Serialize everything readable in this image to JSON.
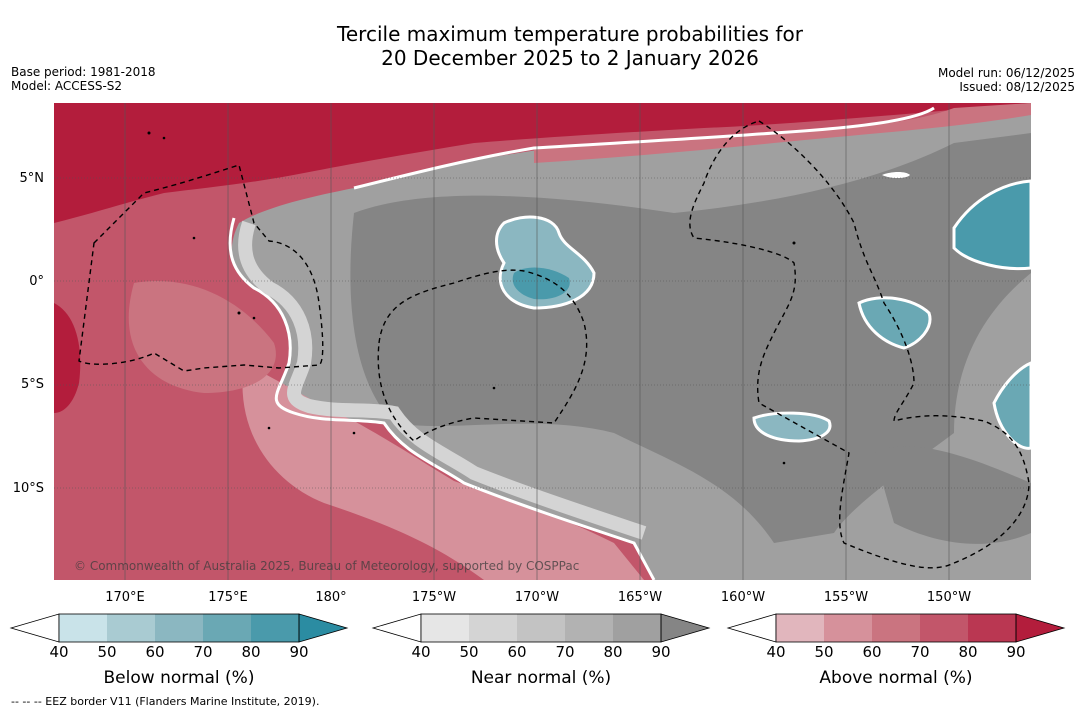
{
  "title": {
    "line1": "Tercile maximum temperature probabilities for",
    "line2": "20 December 2025 to 2 January 2026"
  },
  "meta": {
    "base_period": "Base period: 1981-2018",
    "model": "Model: ACCESS-S2",
    "model_run": "Model run: 06/12/2025",
    "issued": "Issued: 08/12/2025"
  },
  "map": {
    "latitude_labels": [
      "5°N",
      "0°",
      "5°S",
      "10°S"
    ],
    "longitude_labels": [
      "170°E",
      "175°E",
      "180°",
      "175°W",
      "170°W",
      "165°W",
      "160°W",
      "155°W",
      "150°W"
    ],
    "copyright": "© Commonwealth of Australia 2025, Bureau of Meteorology, supported by COSPPac"
  },
  "colorbars": [
    {
      "label": "Below normal (%)",
      "ticks": [
        "40",
        "50",
        "60",
        "70",
        "80",
        "90"
      ],
      "colors": [
        "#ffffff",
        "#c9e3e9",
        "#a9cbd2",
        "#8bb7c1",
        "#6aa8b4",
        "#4a9aab",
        "#2b8ca2"
      ]
    },
    {
      "label": "Near normal (%)",
      "ticks": [
        "40",
        "50",
        "60",
        "70",
        "80",
        "90"
      ],
      "colors": [
        "#ffffff",
        "#e6e6e6",
        "#d4d4d4",
        "#c3c3c3",
        "#b2b2b2",
        "#a0a0a0",
        "#858585"
      ]
    },
    {
      "label": "Above normal (%)",
      "ticks": [
        "40",
        "50",
        "60",
        "70",
        "80",
        "90"
      ],
      "colors": [
        "#ffffff",
        "#e1b6bd",
        "#d6919b",
        "#ca7480",
        "#c2566a",
        "#ba3752",
        "#b31d3c"
      ]
    }
  ],
  "footnote": "--  --  -- EEZ border V11 (Flanders Marine Institute, 2019).",
  "colors": {
    "above_dark": "#b31d3c",
    "near_dark": "#858585",
    "below_dark": "#2b8ca2"
  }
}
